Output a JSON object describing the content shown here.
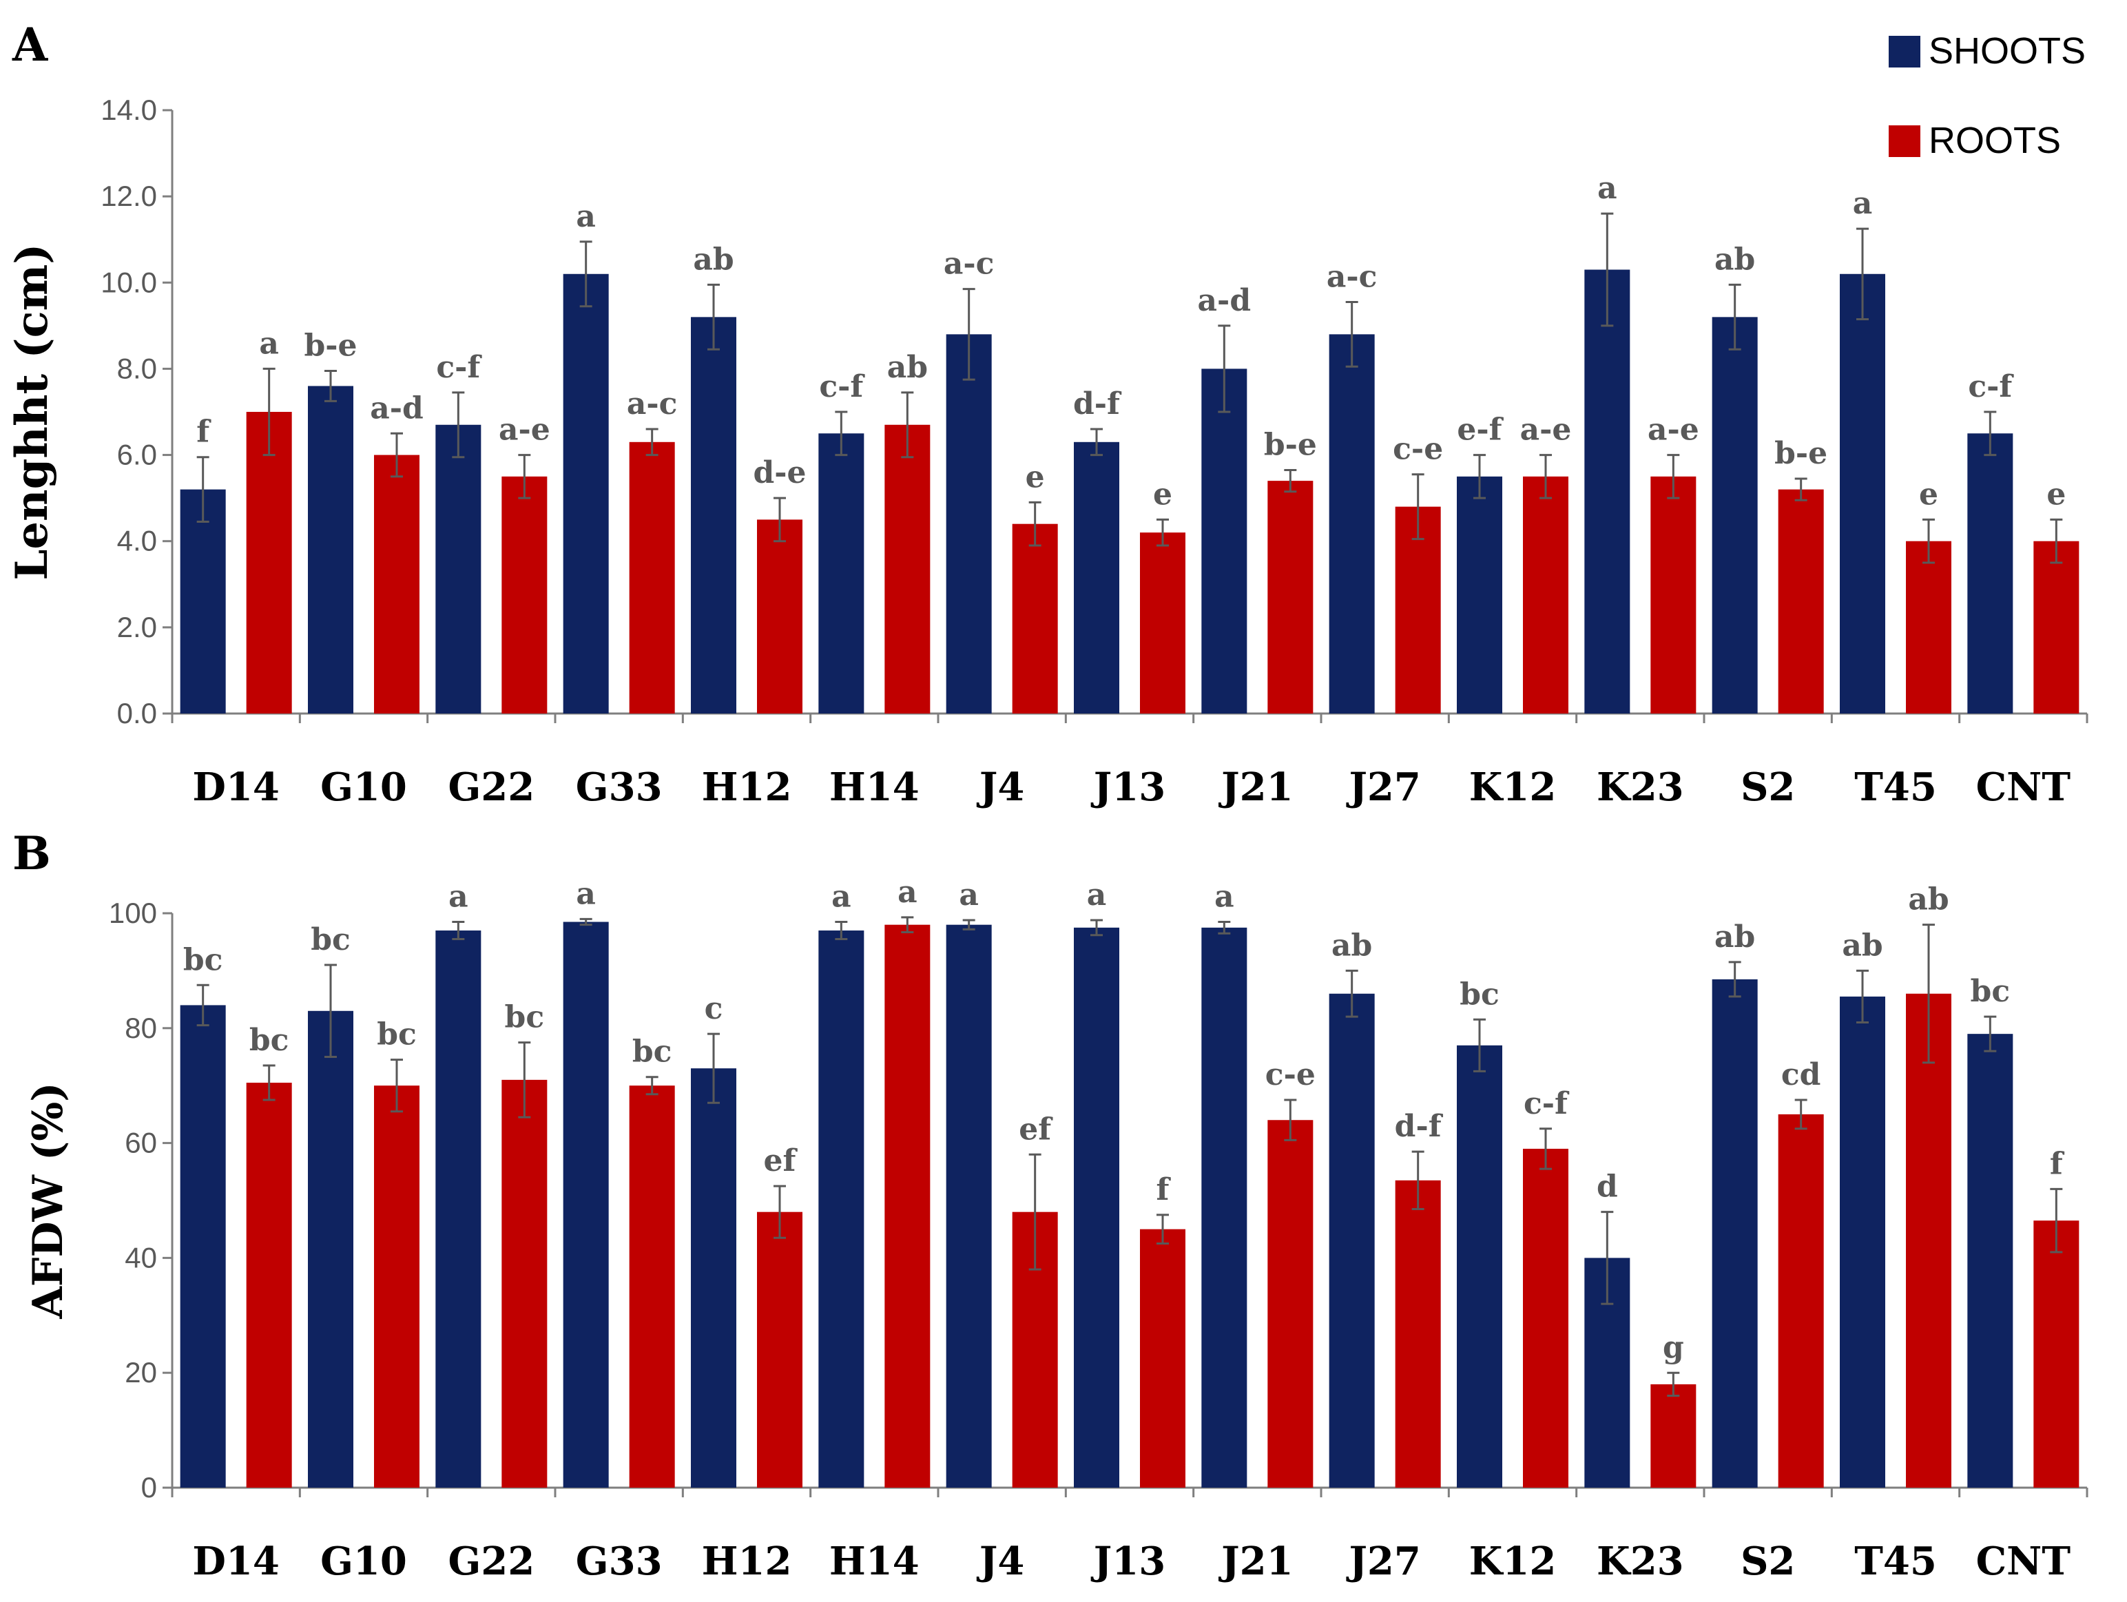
{
  "legend": {
    "items": [
      {
        "name": "SHOOTS",
        "color": "#0f2360"
      },
      {
        "name": "ROOTS",
        "color": "#c00000"
      }
    ]
  },
  "chart_data": [
    {
      "panel": "A",
      "type": "bar",
      "ylabel": "Lenghht (cm)",
      "ylim": [
        0,
        14
      ],
      "yticks": [
        "0.0",
        "2.0",
        "4.0",
        "6.0",
        "8.0",
        "10.0",
        "12.0",
        "14.0"
      ],
      "categories": [
        "D14",
        "G10",
        "G22",
        "G33",
        "H12",
        "H14",
        "J4",
        "J13",
        "J21",
        "J27",
        "K12",
        "K23",
        "S2",
        "T45",
        "CNT"
      ],
      "series": [
        {
          "name": "SHOOTS",
          "color": "#0f2360",
          "values": [
            5.2,
            7.6,
            6.7,
            10.2,
            9.2,
            6.5,
            8.8,
            6.3,
            8.0,
            8.8,
            5.5,
            10.3,
            9.2,
            10.2,
            6.5
          ],
          "errors": [
            0.75,
            0.35,
            0.75,
            0.75,
            0.75,
            0.5,
            1.05,
            0.3,
            1.0,
            0.75,
            0.5,
            1.3,
            0.75,
            1.05,
            0.5
          ],
          "labels": [
            "f",
            "b-e",
            "c-f",
            "a",
            "ab",
            "c-f",
            "a-c",
            "d-f",
            "a-d",
            "a-c",
            "e-f",
            "a",
            "ab",
            "a",
            "c-f"
          ]
        },
        {
          "name": "ROOTS",
          "color": "#c00000",
          "values": [
            7.0,
            6.0,
            5.5,
            6.3,
            4.5,
            6.7,
            4.4,
            4.2,
            5.4,
            4.8,
            5.5,
            5.5,
            5.2,
            4.0,
            4.0
          ],
          "errors": [
            1.0,
            0.5,
            0.5,
            0.3,
            0.5,
            0.75,
            0.5,
            0.3,
            0.25,
            0.75,
            0.5,
            0.5,
            0.25,
            0.5,
            0.5
          ],
          "labels": [
            "a",
            "a-d",
            "a-e",
            "a-c",
            "d-e",
            "ab",
            "e",
            "e",
            "b-e",
            "c-e",
            "a-e",
            "a-e",
            "b-e",
            "e",
            "e"
          ]
        }
      ]
    },
    {
      "panel": "B",
      "type": "bar",
      "ylabel": "AFDW (%)",
      "ylim": [
        0,
        100
      ],
      "yticks": [
        "0",
        "20",
        "40",
        "60",
        "80",
        "100"
      ],
      "categories": [
        "D14",
        "G10",
        "G22",
        "G33",
        "H12",
        "H14",
        "J4",
        "J13",
        "J21",
        "J27",
        "K12",
        "K23",
        "S2",
        "T45",
        "CNT"
      ],
      "series": [
        {
          "name": "SHOOTS",
          "color": "#0f2360",
          "values": [
            84,
            83,
            97,
            98.5,
            73,
            97,
            98,
            97.5,
            97.5,
            86,
            77,
            40,
            88.5,
            85.5,
            79
          ],
          "errors": [
            3.5,
            8,
            1.5,
            0.5,
            6,
            1.5,
            0.8,
            1.3,
            1.0,
            4,
            4.5,
            8,
            3,
            4.5,
            3
          ],
          "labels": [
            "bc",
            "bc",
            "a",
            "a",
            "c",
            "a",
            "a",
            "a",
            "a",
            "ab",
            "bc",
            "d",
            "ab",
            "ab",
            "bc"
          ]
        },
        {
          "name": "ROOTS",
          "color": "#c00000",
          "values": [
            70.5,
            70,
            71,
            70,
            48,
            98,
            48,
            45,
            64,
            53.5,
            59,
            18,
            65,
            86,
            46.5
          ],
          "errors": [
            3,
            4.5,
            6.5,
            1.5,
            4.5,
            1.3,
            10,
            2.5,
            3.5,
            5,
            3.5,
            2,
            2.5,
            12,
            5.5
          ],
          "labels": [
            "bc",
            "bc",
            "bc",
            "bc",
            "ef",
            "a",
            "ef",
            "f",
            "c-e",
            "d-f",
            "c-f",
            "g",
            "cd",
            "ab",
            "f"
          ]
        }
      ]
    }
  ]
}
